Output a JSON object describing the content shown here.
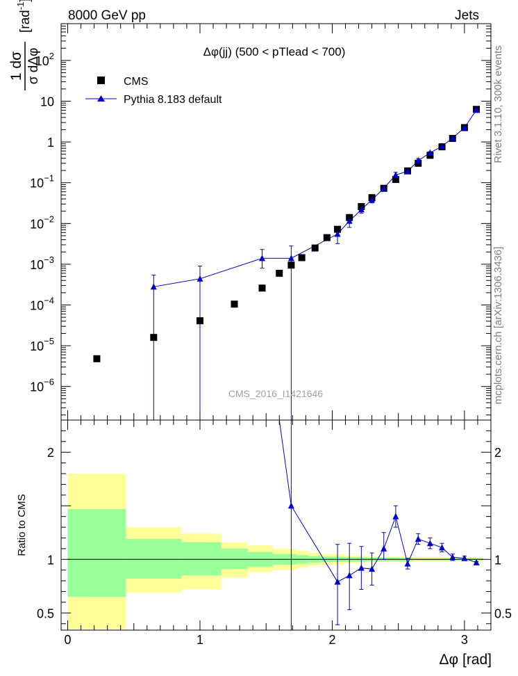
{
  "header": {
    "left": "8000 GeV pp",
    "right": "Jets",
    "watermark": "CMS_2016_I1421646",
    "side_rivet": "Rivet 3.1.10,  300k events",
    "side_mcplots": "mcplots.cern.ch [arXiv:1306.3436]"
  },
  "colors": {
    "data": "#000000",
    "mc": "#0000cc",
    "band_outer": "#ffff99",
    "band_inner": "#99ff99"
  },
  "chart_data": [
    {
      "type": "scatter",
      "title": "Δφ(jj) (500 < pTlead <  700)",
      "xlabel": "Δφ [rad]",
      "ylabel": "1/σ dσ/dΔφ [rad⁻¹]",
      "ylabel_parts": {
        "frac_num": "1 dσ",
        "frac_den": "σ dΔφ",
        "unit": "[rad",
        "unit_exp": "-1",
        "unit_close": "]"
      },
      "xlim": [
        -0.05,
        3.2
      ],
      "ylim": [
        1.5e-07,
        800
      ],
      "yscale": "log",
      "ytick_labels": [
        {
          "v": 1e-06,
          "base": "10",
          "exp": "−6"
        },
        {
          "v": 1e-05,
          "base": "10",
          "exp": "−5"
        },
        {
          "v": 0.0001,
          "base": "10",
          "exp": "−4"
        },
        {
          "v": 0.001,
          "base": "10",
          "exp": "−3"
        },
        {
          "v": 0.01,
          "base": "10",
          "exp": "−2"
        },
        {
          "v": 0.1,
          "base": "10",
          "exp": "−1"
        },
        {
          "v": 1,
          "base": "1",
          "exp": ""
        },
        {
          "v": 10,
          "base": "10",
          "exp": ""
        },
        {
          "v": 100,
          "base": "10",
          "exp": "2"
        }
      ],
      "legend_position": "top-left",
      "series": [
        {
          "name": "CMS",
          "marker": "square",
          "x": [
            0.22,
            0.65,
            1.0,
            1.26,
            1.47,
            1.6,
            1.69,
            1.77,
            1.87,
            1.96,
            2.04,
            2.13,
            2.22,
            2.3,
            2.39,
            2.48,
            2.57,
            2.65,
            2.74,
            2.83,
            2.91,
            3.0,
            3.09
          ],
          "y": [
            4.8e-06,
            1.6e-05,
            4.1e-05,
            0.000105,
            0.00026,
            0.0006,
            0.00095,
            0.00145,
            0.0025,
            0.0045,
            0.0072,
            0.014,
            0.026,
            0.043,
            0.073,
            0.12,
            0.195,
            0.3,
            0.47,
            0.76,
            1.22,
            2.25,
            6.3
          ]
        },
        {
          "name": "Pythia 8.183 default",
          "marker": "triangle",
          "x": [
            0.65,
            1.0,
            1.47,
            1.69,
            2.04,
            2.13,
            2.22,
            2.3,
            2.39,
            2.48,
            2.57,
            2.65,
            2.74,
            2.83,
            2.91,
            3.0,
            3.09
          ],
          "y": [
            0.00028,
            0.00044,
            0.0014,
            0.0014,
            0.0055,
            0.0115,
            0.022,
            0.038,
            0.073,
            0.155,
            0.19,
            0.35,
            0.54,
            0.79,
            1.24,
            2.25,
            6.1
          ],
          "yerr_lo": [
            0.00028,
            0.00044,
            0.0006,
            0.0014,
            0.0023,
            0.0035,
            0.004,
            0.006,
            0.01,
            0.025,
            0.015,
            0.04,
            0.04,
            0.05,
            0.05,
            0.08,
            0.15
          ],
          "yerr_hi": [
            0.00026,
            0.00046,
            0.0009,
            0.0014,
            0.002,
            0.0025,
            0.004,
            0.006,
            0.01,
            0.025,
            0.015,
            0.04,
            0.04,
            0.05,
            0.05,
            0.08,
            0.15
          ]
        }
      ]
    },
    {
      "type": "scatter",
      "xlabel": "Δφ [rad]",
      "ylabel": "Ratio to CMS",
      "xlim": [
        -0.05,
        3.2
      ],
      "ylim": [
        0.34,
        2.3
      ],
      "xticks": [
        0,
        1,
        2,
        3
      ],
      "ytick_labels": [
        0.5,
        1,
        2
      ],
      "reference_line": 1,
      "uncertainty_bands": [
        {
          "x0": 0.0,
          "x1": 0.44,
          "outer": [
            0.35,
            1.8
          ],
          "inner": [
            0.65,
            1.47
          ]
        },
        {
          "x0": 0.44,
          "x1": 0.86,
          "outer": [
            0.69,
            1.3
          ],
          "inner": [
            0.82,
            1.19
          ]
        },
        {
          "x0": 0.86,
          "x1": 1.16,
          "outer": [
            0.72,
            1.24
          ],
          "inner": [
            0.85,
            1.16
          ]
        },
        {
          "x0": 1.16,
          "x1": 1.36,
          "outer": [
            0.83,
            1.16
          ],
          "inner": [
            0.91,
            1.1
          ]
        },
        {
          "x0": 1.36,
          "x1": 1.55,
          "outer": [
            0.88,
            1.13
          ],
          "inner": [
            0.93,
            1.07
          ]
        },
        {
          "x0": 1.55,
          "x1": 1.73,
          "outer": [
            0.9,
            1.1
          ],
          "inner": [
            0.95,
            1.05
          ]
        },
        {
          "x0": 1.73,
          "x1": 1.82,
          "outer": [
            0.92,
            1.08
          ],
          "inner": [
            0.96,
            1.04
          ]
        },
        {
          "x0": 1.82,
          "x1": 1.91,
          "outer": [
            0.94,
            1.06
          ],
          "inner": [
            0.97,
            1.03
          ]
        },
        {
          "x0": 1.91,
          "x1": 2.09,
          "outer": [
            0.95,
            1.05
          ],
          "inner": [
            0.975,
            1.025
          ]
        },
        {
          "x0": 2.09,
          "x1": 2.26,
          "outer": [
            0.965,
            1.035
          ],
          "inner": [
            0.98,
            1.02
          ]
        },
        {
          "x0": 2.26,
          "x1": 2.61,
          "outer": [
            0.975,
            1.025
          ],
          "inner": [
            0.985,
            1.015
          ]
        },
        {
          "x0": 2.61,
          "x1": 3.14,
          "outer": [
            0.98,
            1.02
          ],
          "inner": [
            0.99,
            1.01
          ]
        }
      ],
      "series": [
        {
          "name": "Pythia 8.183 default",
          "marker": "triangle",
          "x": [
            1.69,
            2.04,
            2.13,
            2.22,
            2.3,
            2.39,
            2.48,
            2.57,
            2.65,
            2.74,
            2.83,
            2.91,
            3.0,
            3.09
          ],
          "y": [
            1.5,
            0.79,
            0.85,
            0.92,
            0.91,
            1.1,
            1.4,
            0.96,
            1.19,
            1.15,
            1.11,
            1.02,
            1.01,
            0.97
          ],
          "yerr_lo": [
            1.2,
            0.4,
            0.32,
            0.2,
            0.15,
            0.1,
            0.1,
            0.05,
            0.05,
            0.05,
            0.04,
            0.03,
            0.02,
            0.01
          ],
          "yerr_hi": [
            1.5,
            0.35,
            0.3,
            0.2,
            0.15,
            0.15,
            0.1,
            0.05,
            0.05,
            0.05,
            0.04,
            0.03,
            0.02,
            0.01
          ],
          "offscale_segment_from_x": 1.6
        }
      ]
    }
  ]
}
